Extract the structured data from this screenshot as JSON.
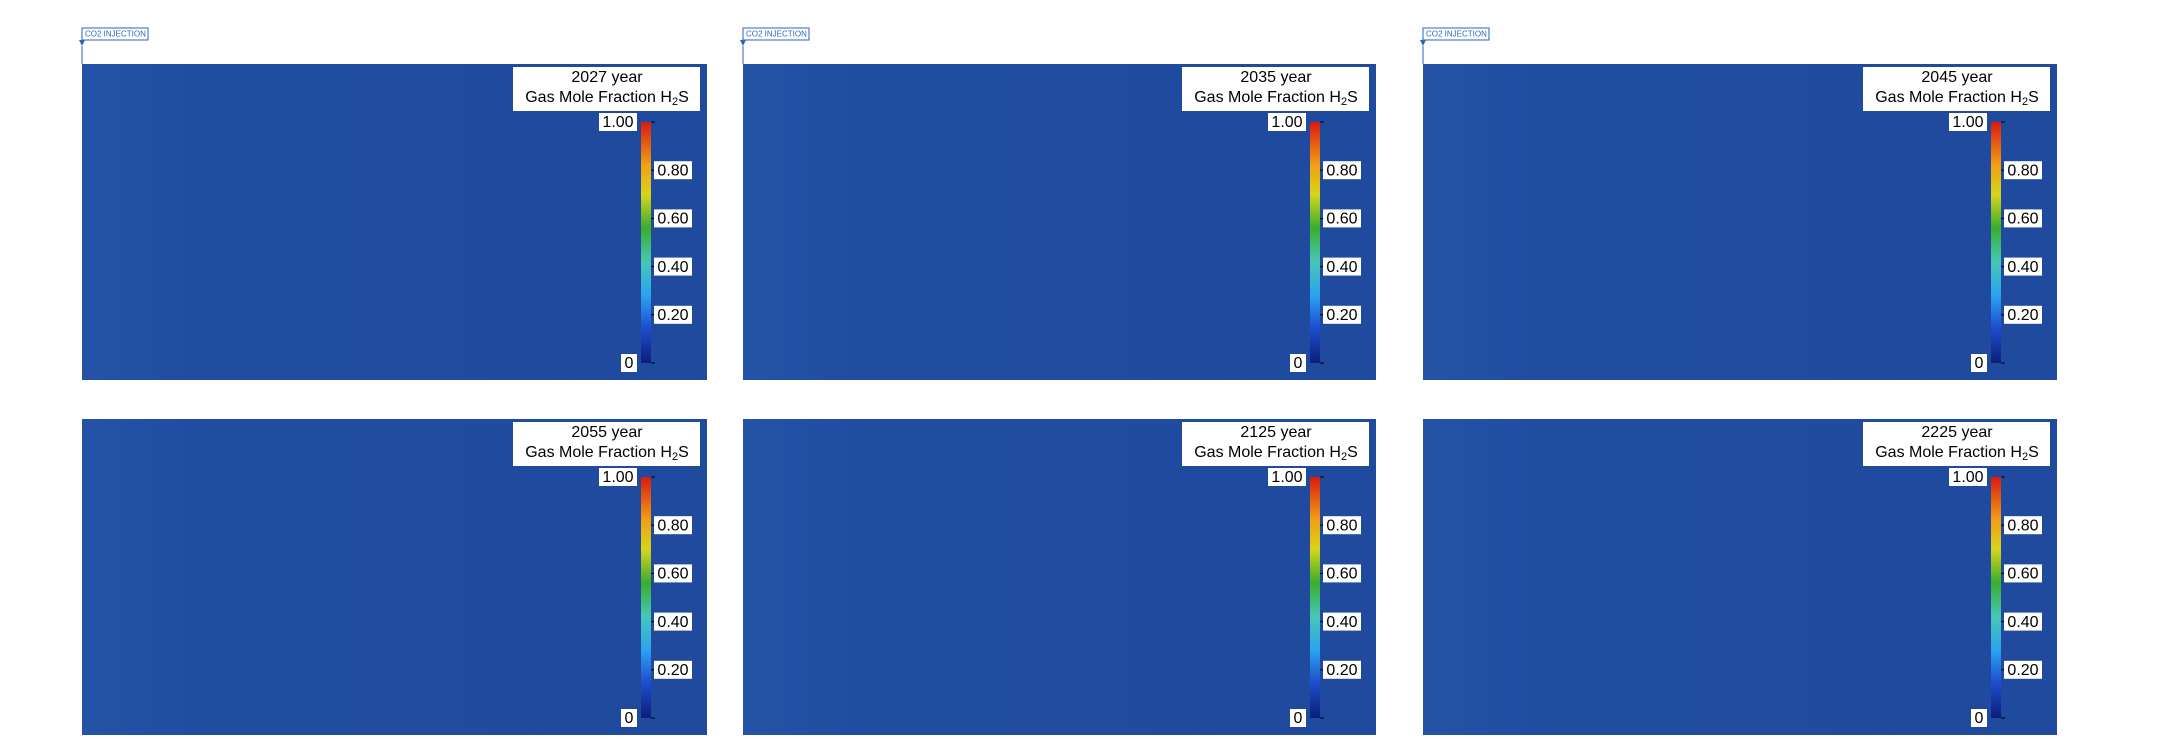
{
  "injection_label": "CO2 INJECTION",
  "quantity": {
    "text": "Gas Mole Fraction H",
    "subscript": "2",
    "suffix": "S"
  },
  "colorbar": {
    "range": [
      0,
      1
    ],
    "ticks": [
      {
        "value": 1,
        "label": "1.00"
      },
      {
        "value": 0.8,
        "label": "0.80"
      },
      {
        "value": 0.6,
        "label": "0.60"
      },
      {
        "value": 0.4,
        "label": "0.40"
      },
      {
        "value": 0.2,
        "label": "0.20"
      },
      0
    ]
  },
  "panels": [
    {
      "year": "2027 year",
      "injection": true
    },
    {
      "year": "2035 year",
      "injection": true
    },
    {
      "year": "2045 year",
      "injection": true
    },
    {
      "year": "2055 year",
      "injection": false
    },
    {
      "year": "2125 year",
      "injection": false
    },
    {
      "year": "2225 year",
      "injection": false
    }
  ]
}
